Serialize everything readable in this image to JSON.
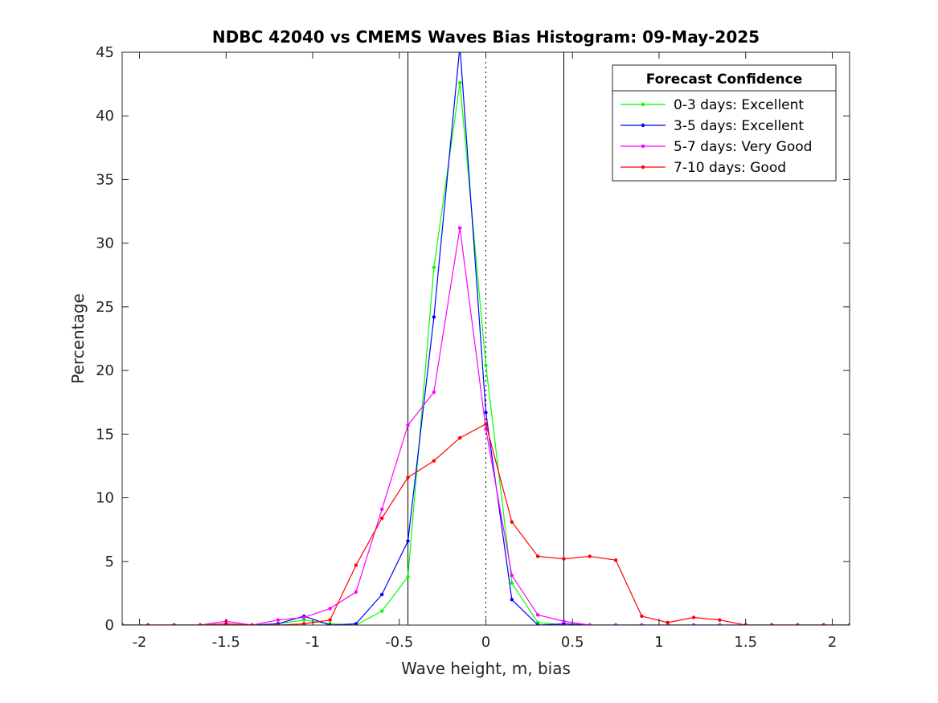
{
  "chart_data": {
    "type": "line",
    "title": "NDBC 42040 vs CMEMS Waves Bias Histogram: 09-May-2025",
    "xlabel": "Wave height, m, bias",
    "ylabel": "Percentage",
    "xlim": [
      -2.1,
      2.1
    ],
    "ylim": [
      0,
      45
    ],
    "xticks": [
      -2,
      -1.5,
      -1,
      -0.5,
      0,
      0.5,
      1,
      1.5,
      2
    ],
    "xtick_labels": [
      "-2",
      "-1.5",
      "-1",
      "-0.5",
      "0",
      "0.5",
      "1",
      "1.5",
      "2"
    ],
    "yticks": [
      0,
      5,
      10,
      15,
      20,
      25,
      30,
      35,
      40,
      45
    ],
    "ytick_labels": [
      "0",
      "5",
      "10",
      "15",
      "20",
      "25",
      "30",
      "35",
      "40",
      "45"
    ],
    "grid": false,
    "reference_lines": [
      {
        "x": -0.45,
        "style": "solid"
      },
      {
        "x": 0,
        "style": "dotted"
      },
      {
        "x": 0.45,
        "style": "solid"
      }
    ],
    "legend": {
      "title": "Forecast Confidence",
      "position": "top-right"
    },
    "x": [
      -2.1,
      -1.95,
      -1.8,
      -1.65,
      -1.5,
      -1.35,
      -1.2,
      -1.05,
      -0.9,
      -0.75,
      -0.6,
      -0.45,
      -0.3,
      -0.15,
      0,
      0.15,
      0.3,
      0.45,
      0.6,
      0.75,
      0.9,
      1.05,
      1.2,
      1.35,
      1.5,
      1.65,
      1.8,
      1.95,
      2.1
    ],
    "series": [
      {
        "name": "0-3 days: Excellent",
        "color": "#00ff00",
        "values": [
          0,
          0,
          0,
          0,
          0,
          0,
          0.1,
          0.4,
          0.1,
          0,
          1.1,
          3.8,
          28.1,
          42.6,
          20.4,
          3.3,
          0.2,
          0,
          0,
          0,
          0,
          0,
          0,
          0,
          0,
          0,
          0,
          0,
          0
        ]
      },
      {
        "name": "3-5 days: Excellent",
        "color": "#0000ff",
        "values": [
          0,
          0,
          0,
          0,
          0,
          0,
          0.1,
          0.7,
          0,
          0.1,
          2.4,
          6.6,
          24.2,
          45.5,
          16.7,
          2.0,
          0,
          0.1,
          0,
          0,
          0,
          0,
          0,
          0,
          0,
          0,
          0,
          0,
          0
        ]
      },
      {
        "name": "5-7 days: Very Good",
        "color": "#ff00ff",
        "values": [
          0,
          0,
          0,
          0,
          0.3,
          0,
          0.4,
          0.6,
          1.3,
          2.6,
          9.1,
          15.7,
          18.3,
          31.2,
          15.4,
          3.9,
          0.8,
          0.3,
          0,
          0,
          0,
          0,
          0,
          0,
          0,
          0,
          0,
          0,
          0
        ]
      },
      {
        "name": "7-10 days: Good",
        "color": "#ff0000",
        "values": [
          0,
          0,
          0,
          0,
          0.1,
          0,
          0,
          0.1,
          0.4,
          4.7,
          8.4,
          11.6,
          12.9,
          14.7,
          15.8,
          8.1,
          5.4,
          5.2,
          5.4,
          5.1,
          0.7,
          0.2,
          0.6,
          0.4,
          0,
          0,
          0,
          0,
          0
        ]
      }
    ]
  }
}
